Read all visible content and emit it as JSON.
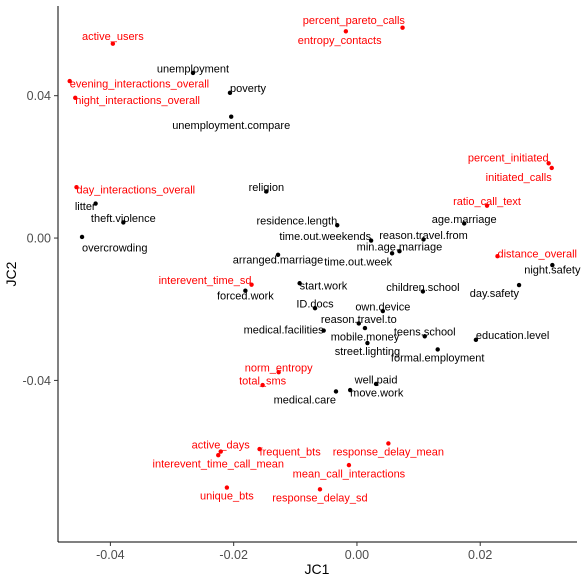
{
  "chart_data": {
    "type": "scatter",
    "xlabel": "JC1",
    "ylabel": "JC2",
    "xlim": [
      -0.0485,
      0.0357
    ],
    "ylim": [
      -0.0854,
      0.0652
    ],
    "x_ticks": [
      -0.04,
      -0.02,
      0.0,
      0.02
    ],
    "x_tick_labels": [
      "-0.04",
      "-0.02",
      "0.00",
      "0.02"
    ],
    "y_ticks": [
      -0.04,
      0.0,
      0.04
    ],
    "y_tick_labels": [
      "-0.04",
      "0.00",
      "0.04"
    ],
    "grid": false,
    "colors": {
      "black_group": "#000000",
      "red_group": "#ff0000"
    },
    "points": [
      {
        "label": "percent_pareto_calls",
        "x": 0.0074,
        "y": 0.0591,
        "color": "red_group",
        "lx": -0.0005,
        "ly": 0.0612,
        "anchor": "middle"
      },
      {
        "label": "entropy_contacts",
        "x": -0.0018,
        "y": 0.0581,
        "color": "red_group",
        "lx": -0.0028,
        "ly": 0.0557,
        "anchor": "middle"
      },
      {
        "label": "active_users",
        "x": -0.0396,
        "y": 0.0546,
        "color": "red_group",
        "lx": -0.0396,
        "ly": 0.0568,
        "anchor": "middle"
      },
      {
        "label": "evening_interactions_overall",
        "x": -0.0466,
        "y": 0.0441,
        "color": "red_group",
        "lx": -0.0466,
        "ly": 0.0434,
        "anchor": "start"
      },
      {
        "label": "night_interactions_overall",
        "x": -0.0457,
        "y": 0.0394,
        "color": "red_group",
        "lx": -0.0457,
        "ly": 0.0388,
        "anchor": "start"
      },
      {
        "label": "unemployment",
        "x": -0.0266,
        "y": 0.0464,
        "color": "black_group",
        "lx": -0.0266,
        "ly": 0.0477,
        "anchor": "middle"
      },
      {
        "label": "poverty",
        "x": -0.0206,
        "y": 0.0408,
        "color": "black_group",
        "lx": -0.0206,
        "ly": 0.0421,
        "anchor": "start"
      },
      {
        "label": "unemployment.compare",
        "x": -0.0204,
        "y": 0.0341,
        "color": "black_group",
        "lx": -0.0204,
        "ly": 0.0317,
        "anchor": "middle"
      },
      {
        "label": "percent_initiated",
        "x": 0.0311,
        "y": 0.021,
        "color": "red_group",
        "lx": 0.0311,
        "ly": 0.0226,
        "anchor": "end"
      },
      {
        "label": "initiated_calls",
        "x": 0.0316,
        "y": 0.0197,
        "color": "red_group",
        "lx": 0.0316,
        "ly": 0.0172,
        "anchor": "end"
      },
      {
        "label": "day_interactions_overall",
        "x": -0.0455,
        "y": 0.0143,
        "color": "red_group",
        "lx": -0.0455,
        "ly": 0.0137,
        "anchor": "start"
      },
      {
        "label": "religion",
        "x": -0.0147,
        "y": 0.0131,
        "color": "black_group",
        "lx": -0.0147,
        "ly": 0.0144,
        "anchor": "middle"
      },
      {
        "label": "litter",
        "x": -0.0424,
        "y": 0.0097,
        "color": "black_group",
        "lx": -0.0424,
        "ly": 0.009,
        "anchor": "end"
      },
      {
        "label": "ratio_call_text",
        "x": 0.0211,
        "y": 0.0091,
        "color": "red_group",
        "lx": 0.0211,
        "ly": 0.0104,
        "anchor": "middle"
      },
      {
        "label": "theft.violence",
        "x": -0.0379,
        "y": 0.0044,
        "color": "black_group",
        "lx": -0.0379,
        "ly": 0.0057,
        "anchor": "middle"
      },
      {
        "label": "residence.length",
        "x": -0.0032,
        "y": 0.0036,
        "color": "black_group",
        "lx": -0.0032,
        "ly": 0.0049,
        "anchor": "end"
      },
      {
        "label": "age.marriage",
        "x": 0.0174,
        "y": 0.0041,
        "color": "black_group",
        "lx": 0.0174,
        "ly": 0.0054,
        "anchor": "middle"
      },
      {
        "label": "time.out.weekends",
        "x": 0.0023,
        "y": -0.0007,
        "color": "black_group",
        "lx": 0.0023,
        "ly": 0.0006,
        "anchor": "end"
      },
      {
        "label": "reason.travel.from",
        "x": 0.0108,
        "y": -0.0004,
        "color": "black_group",
        "lx": 0.0108,
        "ly": 0.0009,
        "anchor": "middle"
      },
      {
        "label": "overcrowding",
        "x": -0.0446,
        "y": 0.0003,
        "color": "black_group",
        "lx": -0.0446,
        "ly": -0.0027,
        "anchor": "start"
      },
      {
        "label": "min.age.marriage",
        "x": 0.0069,
        "y": -0.0037,
        "color": "black_group",
        "lx": 0.0069,
        "ly": -0.0024,
        "anchor": "middle"
      },
      {
        "label": "distance_overall",
        "x": 0.0228,
        "y": -0.0051,
        "color": "red_group",
        "lx": 0.0228,
        "ly": -0.0044,
        "anchor": "start"
      },
      {
        "label": "arranged.marriage",
        "x": -0.0128,
        "y": -0.0047,
        "color": "black_group",
        "lx": -0.0128,
        "ly": -0.006,
        "anchor": "middle"
      },
      {
        "label": "time.out.week",
        "x": 0.0057,
        "y": -0.0043,
        "color": "black_group",
        "lx": 0.0057,
        "ly": -0.0066,
        "anchor": "end"
      },
      {
        "label": "night.safety",
        "x": 0.0317,
        "y": -0.0076,
        "color": "black_group",
        "lx": 0.0317,
        "ly": -0.0089,
        "anchor": "middle"
      },
      {
        "label": "interevent_time_sd",
        "x": -0.0171,
        "y": -0.0131,
        "color": "red_group",
        "lx": -0.0171,
        "ly": -0.0118,
        "anchor": "end"
      },
      {
        "label": "start.work",
        "x": -0.0093,
        "y": -0.0127,
        "color": "black_group",
        "lx": -0.0093,
        "ly": -0.0134,
        "anchor": "start"
      },
      {
        "label": "children.school",
        "x": 0.0107,
        "y": -0.015,
        "color": "black_group",
        "lx": 0.0107,
        "ly": -0.0137,
        "anchor": "middle"
      },
      {
        "label": "day.safety",
        "x": 0.0263,
        "y": -0.0132,
        "color": "black_group",
        "lx": 0.0263,
        "ly": -0.0155,
        "anchor": "end"
      },
      {
        "label": "forced.work",
        "x": -0.0181,
        "y": -0.0148,
        "color": "black_group",
        "lx": -0.0181,
        "ly": -0.0161,
        "anchor": "middle"
      },
      {
        "label": "ID.docs",
        "x": -0.0068,
        "y": -0.0197,
        "color": "black_group",
        "lx": -0.0068,
        "ly": -0.0184,
        "anchor": "middle"
      },
      {
        "label": "own.device",
        "x": 0.0042,
        "y": -0.0205,
        "color": "black_group",
        "lx": 0.0042,
        "ly": -0.0192,
        "anchor": "middle"
      },
      {
        "label": "reason.travel.to",
        "x": 0.0003,
        "y": -0.024,
        "color": "black_group",
        "lx": 0.0003,
        "ly": -0.0227,
        "anchor": "middle"
      },
      {
        "label": "medical.facilities",
        "x": -0.0054,
        "y": -0.026,
        "color": "black_group",
        "lx": -0.0054,
        "ly": -0.0257,
        "anchor": "end"
      },
      {
        "label": "mobile.money",
        "x": 0.0013,
        "y": -0.0253,
        "color": "black_group",
        "lx": 0.0013,
        "ly": -0.0276,
        "anchor": "middle"
      },
      {
        "label": "teens.school",
        "x": 0.011,
        "y": -0.0276,
        "color": "black_group",
        "lx": 0.011,
        "ly": -0.0263,
        "anchor": "middle"
      },
      {
        "label": "education.level",
        "x": 0.0193,
        "y": -0.0286,
        "color": "black_group",
        "lx": 0.0193,
        "ly": -0.0273,
        "anchor": "start"
      },
      {
        "label": "street.lighting",
        "x": 0.0017,
        "y": -0.0295,
        "color": "black_group",
        "lx": 0.0017,
        "ly": -0.0318,
        "anchor": "middle"
      },
      {
        "label": "formal.employment",
        "x": 0.0131,
        "y": -0.0313,
        "color": "black_group",
        "lx": 0.0131,
        "ly": -0.0336,
        "anchor": "middle"
      },
      {
        "label": "norm_entropy",
        "x": -0.0127,
        "y": -0.0377,
        "color": "red_group",
        "lx": -0.0127,
        "ly": -0.0364,
        "anchor": "middle"
      },
      {
        "label": "total_sms",
        "x": -0.0153,
        "y": -0.0413,
        "color": "red_group",
        "lx": -0.0153,
        "ly": -0.04,
        "anchor": "middle"
      },
      {
        "label": "well.paid",
        "x": 0.0031,
        "y": -0.041,
        "color": "black_group",
        "lx": 0.0031,
        "ly": -0.0397,
        "anchor": "middle"
      },
      {
        "label": "move.work",
        "x": -0.0011,
        "y": -0.0427,
        "color": "black_group",
        "lx": -0.0011,
        "ly": -0.0434,
        "anchor": "start"
      },
      {
        "label": "medical.care",
        "x": -0.0034,
        "y": -0.0431,
        "color": "black_group",
        "lx": -0.0034,
        "ly": -0.0454,
        "anchor": "end"
      },
      {
        "label": "active_days",
        "x": -0.0221,
        "y": -0.06,
        "color": "red_group",
        "lx": -0.0221,
        "ly": -0.058,
        "anchor": "middle"
      },
      {
        "label": "frequent_bts",
        "x": -0.0158,
        "y": -0.0593,
        "color": "red_group",
        "lx": -0.0158,
        "ly": -0.06,
        "anchor": "start"
      },
      {
        "label": "response_delay_mean",
        "x": 0.0051,
        "y": -0.0577,
        "color": "red_group",
        "lx": 0.0051,
        "ly": -0.06,
        "anchor": "middle"
      },
      {
        "label": "interevent_time_call_mean",
        "x": -0.0225,
        "y": -0.061,
        "color": "red_group",
        "lx": -0.0225,
        "ly": -0.0633,
        "anchor": "middle"
      },
      {
        "label": "mean_call_interactions",
        "x": -0.0013,
        "y": -0.0638,
        "color": "red_group",
        "lx": -0.0013,
        "ly": -0.0661,
        "anchor": "middle"
      },
      {
        "label": "unique_bts",
        "x": -0.0211,
        "y": -0.0701,
        "color": "red_group",
        "lx": -0.0211,
        "ly": -0.0724,
        "anchor": "middle"
      },
      {
        "label": "response_delay_sd",
        "x": -0.006,
        "y": -0.0706,
        "color": "red_group",
        "lx": -0.006,
        "ly": -0.0729,
        "anchor": "middle"
      }
    ]
  }
}
